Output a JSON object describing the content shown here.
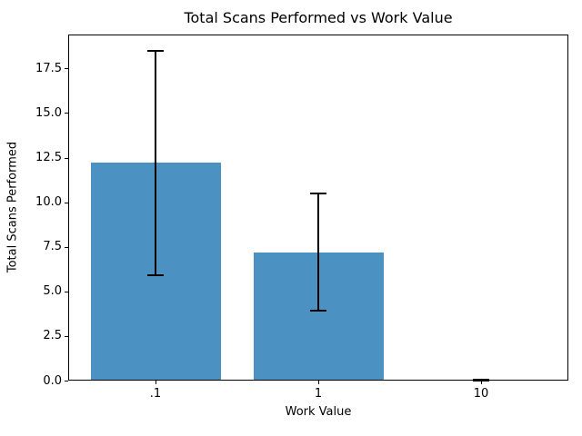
{
  "chart_data": {
    "type": "bar",
    "title": "Total Scans Performed vs Work Value",
    "xlabel": "Work Value",
    "ylabel": "Total Scans Performed",
    "categories": [
      ".1",
      "1",
      "10"
    ],
    "values": [
      12.2,
      7.2,
      0.02
    ],
    "errors": [
      6.3,
      3.3,
      0.02
    ],
    "error_ranges": [
      [
        5.9,
        18.5
      ],
      [
        3.9,
        10.5
      ],
      [
        0,
        0.04
      ]
    ],
    "ylim": [
      0,
      19.4
    ],
    "yticks": [
      0.0,
      2.5,
      5.0,
      7.5,
      10.0,
      12.5,
      15.0,
      17.5
    ],
    "ytick_labels": [
      "0.0",
      "2.5",
      "5.0",
      "7.5",
      "10.0",
      "12.5",
      "15.0",
      "17.5"
    ],
    "bar_color": "#4b92c3",
    "error_color": "#000000",
    "axis_color": "#000000",
    "background_color": "#ffffff",
    "grid": false,
    "legend": null
  }
}
